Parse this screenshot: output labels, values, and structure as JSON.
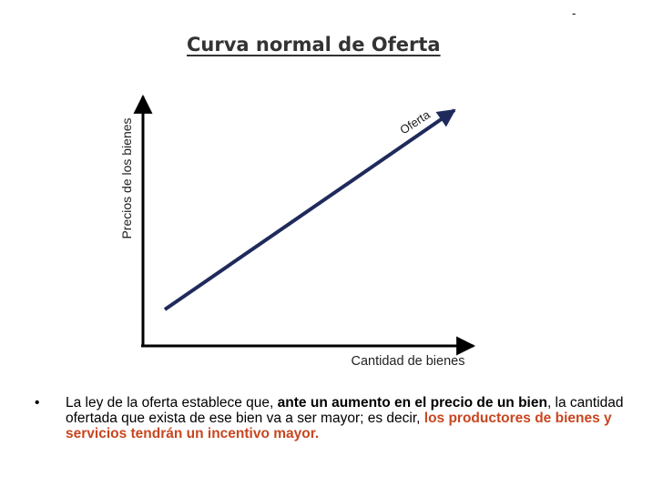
{
  "corner_mark": "-",
  "title": "Curva normal de Oferta",
  "diagram": {
    "y_axis_label": "Precios de los bienes",
    "x_axis_label": "Cantidad de bienes",
    "curve_label": "Oferta"
  },
  "bullet": {
    "marker": "•",
    "part1": "La ley de la oferta establece que, ",
    "part2": "ante un aumento en el precio de un bien",
    "part3": ", la cantidad ofertada que exista de ese bien va a ser mayor; es decir, ",
    "part4": "los productores de bienes y servicios tendrán un incentivo mayor."
  },
  "colors": {
    "curve": "#1f2a5c",
    "axes": "#000000",
    "highlight": "#c8461f"
  }
}
